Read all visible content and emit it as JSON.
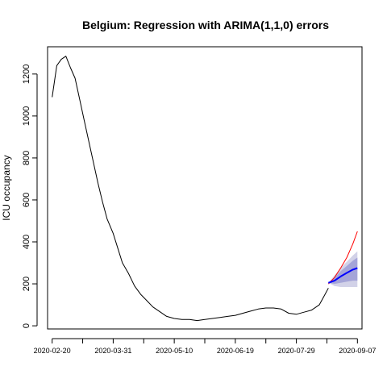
{
  "chart_data": {
    "type": "line",
    "title": "Belgium: Regression with ARIMA(1,1,0) errors",
    "xlabel": "",
    "ylabel": "ICU occupancy",
    "x_tick_labels": [
      "2020-02-20",
      "2020-03-31",
      "2020-05-10",
      "2020-06-19",
      "2020-07-29",
      "2020-09-07"
    ],
    "y_ticks": [
      0,
      200,
      400,
      600,
      800,
      1000,
      1200
    ],
    "xlim": [
      "2020-02-17",
      "2020-09-10"
    ],
    "ylim": [
      -15,
      1330
    ],
    "grid": false,
    "legend": "none",
    "colors": {
      "observed": "#000000",
      "actual_future": "#ff0000",
      "forecast_mean": "#0000ff",
      "pi80": "#a5a5d8",
      "pi95": "#d2d2e8"
    },
    "series": [
      {
        "role": "observed",
        "x": [
          "2020-02-20",
          "2020-02-23",
          "2020-02-26",
          "2020-02-29",
          "2020-03-03",
          "2020-03-06",
          "2020-03-09",
          "2020-03-12",
          "2020-03-15",
          "2020-03-18",
          "2020-03-21",
          "2020-03-24",
          "2020-03-27",
          "2020-03-31",
          "2020-04-03",
          "2020-04-06",
          "2020-04-10",
          "2020-04-14",
          "2020-04-18",
          "2020-04-22",
          "2020-04-26",
          "2020-05-01",
          "2020-05-05",
          "2020-05-10",
          "2020-05-15",
          "2020-05-20",
          "2020-05-25",
          "2020-05-30",
          "2020-06-04",
          "2020-06-09",
          "2020-06-14",
          "2020-06-19",
          "2020-06-24",
          "2020-06-29",
          "2020-07-04",
          "2020-07-09",
          "2020-07-14",
          "2020-07-19",
          "2020-07-24",
          "2020-07-29",
          "2020-08-03",
          "2020-08-08",
          "2020-08-13",
          "2020-08-16",
          "2020-08-19"
        ],
        "y": [
          1090,
          1240,
          1270,
          1285,
          1230,
          1180,
          1080,
          980,
          880,
          780,
          680,
          590,
          510,
          440,
          370,
          300,
          250,
          190,
          150,
          120,
          90,
          65,
          45,
          35,
          30,
          30,
          25,
          30,
          35,
          40,
          45,
          50,
          60,
          70,
          80,
          85,
          85,
          80,
          60,
          55,
          65,
          75,
          100,
          140,
          180
        ]
      },
      {
        "role": "actual_future",
        "x": [
          "2020-08-19",
          "2020-08-23",
          "2020-08-27",
          "2020-08-31",
          "2020-09-04",
          "2020-09-07"
        ],
        "y": [
          200,
          230,
          275,
          325,
          390,
          450
        ]
      },
      {
        "role": "forecast_mean",
        "x": [
          "2020-08-19",
          "2020-08-23",
          "2020-08-27",
          "2020-08-31",
          "2020-09-04",
          "2020-09-07"
        ],
        "y": [
          205,
          215,
          235,
          252,
          268,
          275
        ]
      },
      {
        "role": "pi80",
        "x": [
          "2020-08-19",
          "2020-08-23",
          "2020-08-27",
          "2020-08-31",
          "2020-09-04",
          "2020-09-07"
        ],
        "lower": [
          205,
          200,
          205,
          210,
          215,
          215
        ],
        "upper": [
          205,
          230,
          260,
          285,
          310,
          325
        ]
      },
      {
        "role": "pi95",
        "x": [
          "2020-08-19",
          "2020-08-23",
          "2020-08-27",
          "2020-08-31",
          "2020-09-04",
          "2020-09-07"
        ],
        "lower": [
          205,
          190,
          185,
          185,
          185,
          185
        ],
        "upper": [
          205,
          240,
          275,
          305,
          335,
          355
        ]
      }
    ]
  }
}
